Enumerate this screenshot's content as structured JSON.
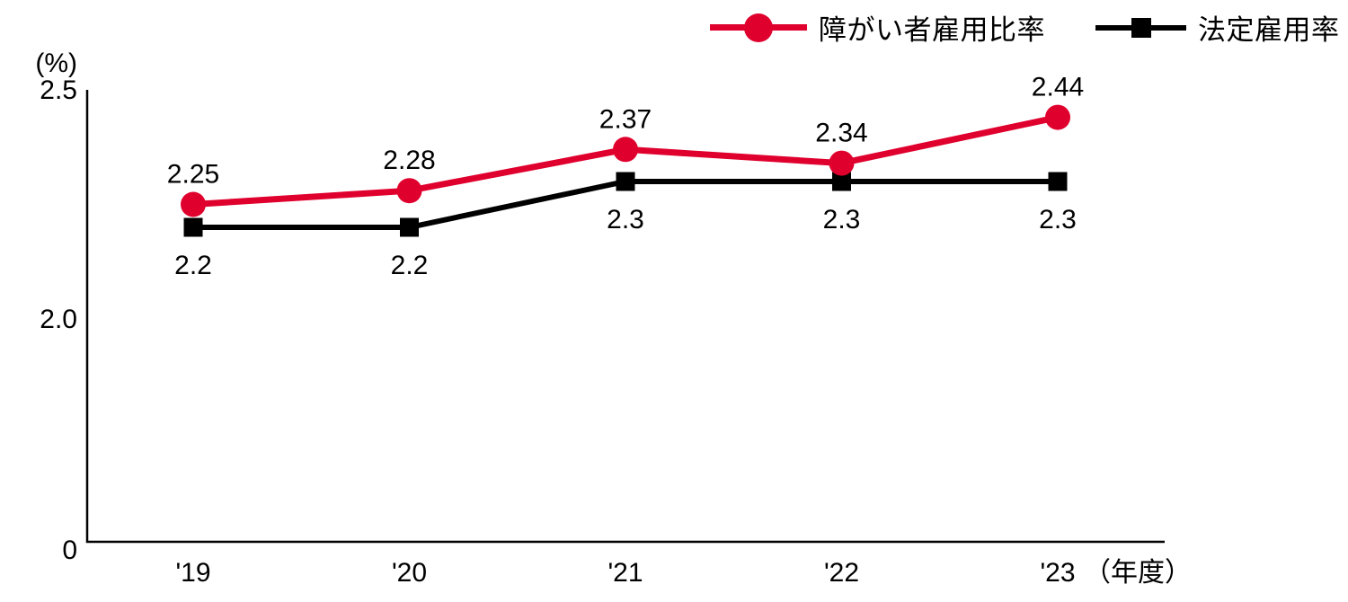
{
  "chart_data": {
    "type": "line",
    "title": "",
    "y_axis": {
      "unit_label": "(%)",
      "ticks": [
        {
          "label": "2.5",
          "value": 2.5
        },
        {
          "label": "2.0",
          "value": 2.0
        },
        {
          "label": "0",
          "value": 0
        }
      ],
      "grid": false
    },
    "x_axis": {
      "unit_label": "（年度）",
      "categories": [
        "'19",
        "'20",
        "'21",
        "'22",
        "'23"
      ]
    },
    "legend_position": "top-right",
    "series": [
      {
        "name": "法定雇用率",
        "marker": "square",
        "color": "#000000",
        "values": [
          2.2,
          2.2,
          2.3,
          2.3,
          2.3
        ],
        "labels": [
          "2.2",
          "2.2",
          "2.3",
          "2.3",
          "2.3"
        ],
        "label_position": "below"
      },
      {
        "name": "障がい者雇用比率",
        "marker": "circle",
        "color": "#e0002d",
        "values": [
          2.25,
          2.28,
          2.37,
          2.34,
          2.44
        ],
        "labels": [
          "2.25",
          "2.28",
          "2.37",
          "2.34",
          "2.44"
        ],
        "label_position": "above"
      }
    ],
    "colors": {
      "accent_red": "#e0002d",
      "axis_black": "#000000",
      "background": "#ffffff"
    }
  }
}
